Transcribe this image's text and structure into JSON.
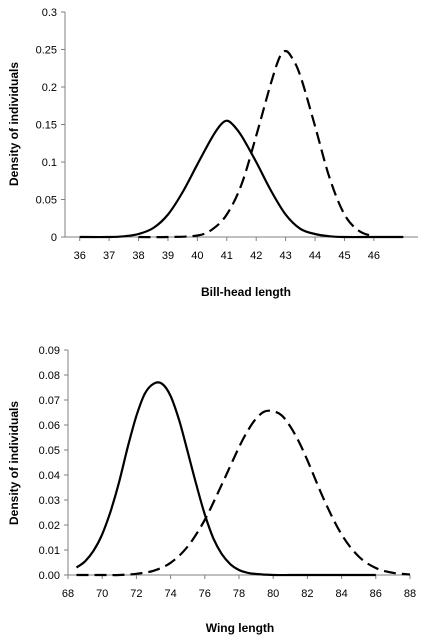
{
  "chart_data": [
    {
      "type": "line",
      "title": "",
      "xlabel": "Bill-head length",
      "ylabel": "Density of individuals",
      "xlim": [
        35.5,
        47.5
      ],
      "ylim": [
        0,
        0.3
      ],
      "x_ticks": [
        "36",
        "37",
        "38",
        "39",
        "40",
        "41",
        "42",
        "43",
        "44",
        "45",
        "46"
      ],
      "y_ticks": [
        "0",
        "0.05",
        "0.1",
        "0.15",
        "0.2",
        "0.25",
        "0.3"
      ],
      "grid": false,
      "legend": "none",
      "series": [
        {
          "style": "solid",
          "x": [
            36,
            37,
            37.5,
            38,
            38.5,
            39,
            39.5,
            40,
            40.5,
            40.8,
            41,
            41.2,
            41.5,
            42,
            42.5,
            43,
            43.5,
            44,
            44.5,
            45,
            46,
            47
          ],
          "y": [
            0,
            0,
            0.001,
            0.004,
            0.012,
            0.03,
            0.06,
            0.097,
            0.133,
            0.15,
            0.155,
            0.15,
            0.135,
            0.1,
            0.062,
            0.03,
            0.011,
            0.004,
            0.001,
            0,
            0,
            0
          ]
        },
        {
          "style": "dashed",
          "x": [
            38,
            39,
            40,
            40.5,
            41,
            41.5,
            42,
            42.5,
            42.8,
            43,
            43.2,
            43.5,
            44,
            44.5,
            45,
            45.5,
            46
          ],
          "y": [
            0,
            0,
            0.002,
            0.01,
            0.03,
            0.07,
            0.135,
            0.205,
            0.24,
            0.248,
            0.24,
            0.215,
            0.148,
            0.078,
            0.03,
            0.008,
            0.001
          ]
        }
      ]
    },
    {
      "type": "line",
      "title": "",
      "xlabel": "Wing length",
      "ylabel": "Density of individuals",
      "xlim": [
        68,
        88
      ],
      "ylim": [
        0,
        0.09
      ],
      "x_ticks": [
        "68",
        "70",
        "72",
        "74",
        "76",
        "78",
        "80",
        "82",
        "84",
        "86",
        "88"
      ],
      "y_ticks": [
        "0.00",
        "0.01",
        "0.02",
        "0.03",
        "0.04",
        "0.05",
        "0.06",
        "0.07",
        "0.08",
        "0.09"
      ],
      "grid": false,
      "legend": "none",
      "series": [
        {
          "style": "solid",
          "x": [
            68.5,
            69,
            69.5,
            70,
            70.5,
            71,
            71.5,
            72,
            72.5,
            73,
            73.5,
            74,
            74.5,
            75,
            75.5,
            76,
            76.5,
            77,
            77.5,
            78,
            78.5,
            79,
            80,
            81,
            82,
            84,
            86
          ],
          "y": [
            0.003,
            0.0055,
            0.0098,
            0.0163,
            0.0257,
            0.0375,
            0.0513,
            0.0637,
            0.0726,
            0.0765,
            0.0765,
            0.0716,
            0.0619,
            0.0493,
            0.0362,
            0.0242,
            0.0147,
            0.0083,
            0.0043,
            0.002,
            0.0009,
            0.0004,
            0,
            0,
            0,
            0,
            0
          ]
        },
        {
          "style": "dashed",
          "x": [
            68.5,
            70,
            71,
            72,
            73,
            74,
            75,
            76,
            77,
            77.5,
            78,
            78.5,
            79,
            79.5,
            80,
            80.5,
            81,
            81.5,
            82,
            83,
            84,
            85,
            86,
            87,
            88
          ],
          "y": [
            0,
            0,
            0,
            0.0005,
            0.0017,
            0.0049,
            0.0114,
            0.0221,
            0.0363,
            0.0437,
            0.0511,
            0.0576,
            0.0626,
            0.0654,
            0.0655,
            0.0638,
            0.0594,
            0.0533,
            0.0459,
            0.0297,
            0.0162,
            0.0074,
            0.0028,
            0.0009,
            0.0002
          ]
        }
      ]
    }
  ]
}
